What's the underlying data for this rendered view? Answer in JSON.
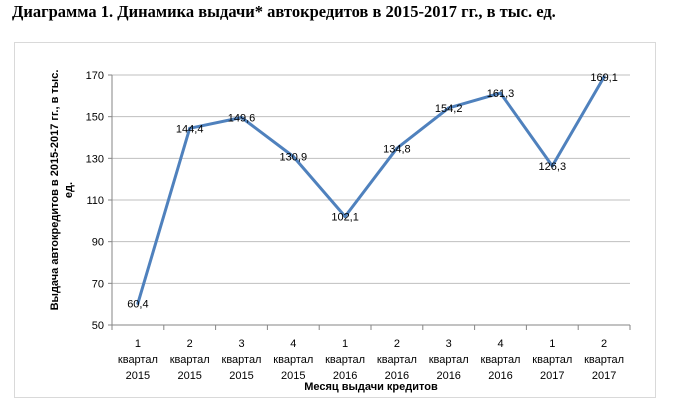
{
  "title": "Диаграмма 1. Динамика выдачи* автокредитов в 2015-2017 гг., в тыс. ед.",
  "colors": {
    "line": "#4f81bd",
    "grid": "#bfbfbf",
    "frame": "#d9d9d9",
    "axis": "#868686"
  },
  "chart_data": {
    "type": "line",
    "title": "Диаграмма 1. Динамика выдачи* автокредитов в 2015-2017 гг., в тыс. ед.",
    "xlabel": "Месяц выдачи кредитов",
    "ylabel": "Выдача автокредитов  в 2015-2017 гг., в  тыс. ед.",
    "ylabel_lines": [
      "Выдача автокредитов  в 2015-2017 гг., в  тыс.",
      "ед."
    ],
    "ylim": [
      50,
      170
    ],
    "yticks": [
      50,
      70,
      90,
      110,
      130,
      150,
      170
    ],
    "grid": true,
    "legend": "none",
    "categories": [
      [
        "1",
        "квартал",
        "2015"
      ],
      [
        "2",
        "квартал",
        "2015"
      ],
      [
        "3",
        "квартал",
        "2015"
      ],
      [
        "4",
        "квартал",
        "2015"
      ],
      [
        "1",
        "квартал",
        "2016"
      ],
      [
        "2",
        "квартал",
        "2016"
      ],
      [
        "3",
        "квартал",
        "2016"
      ],
      [
        "4",
        "квартал",
        "2016"
      ],
      [
        "1",
        "квартал",
        "2017"
      ],
      [
        "2",
        "квартал",
        "2017"
      ]
    ],
    "values": [
      60.4,
      144.4,
      149.6,
      130.9,
      102.1,
      134.8,
      154.2,
      161.3,
      126.3,
      169.1
    ],
    "data_labels": [
      "60,4",
      "144,4",
      "149,6",
      "130,9",
      "102,1",
      "134,8",
      "154,2",
      "161,3",
      "126,3",
      "169,1"
    ]
  }
}
